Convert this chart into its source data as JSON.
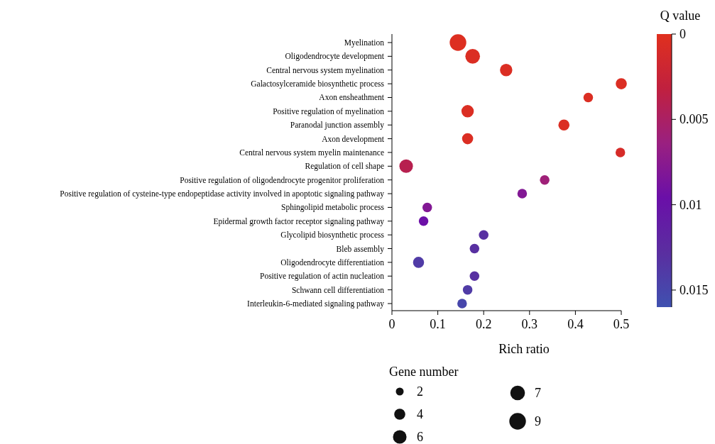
{
  "chart_data": {
    "type": "bubble",
    "orientation": "horizontal",
    "xlabel": "Rich ratio",
    "clabel": "Q value",
    "legend_title": "Gene number",
    "grid": false,
    "marker": "circle",
    "categories": [
      "Myelination",
      "Oligodendrocyte development",
      "Central nervous system myelination",
      "Galactosylceramide biosynthetic process",
      "Axon ensheathment",
      "Positive regulation of myelination",
      "Paranodal junction assembly",
      "Axon development",
      "Central nervous system myelin maintenance",
      "Regulation of cell shape",
      "Positive regulation of oligodendrocyte progenitor proliferation",
      "Positive regulation of cysteine-type endopeptidase activity involved in apoptotic signaling pathway",
      "Sphingolipid metabolic process",
      "Epidermal growth factor receptor signaling pathway",
      "Glycolipid biosynthetic process",
      "Bleb assembly",
      "Oligodendrocyte differentiation",
      "Positive regulation of actin nucleation",
      "Schwann cell differentiation",
      "Interleukin-6-mediated signaling pathway"
    ],
    "values": [
      0.144,
      0.176,
      0.249,
      0.5,
      0.428,
      0.165,
      0.375,
      0.165,
      0.498,
      0.031,
      0.333,
      0.284,
      0.077,
      0.069,
      0.2,
      0.18,
      0.058,
      0.18,
      0.165,
      0.153
    ],
    "sizes": [
      9,
      7,
      5,
      4,
      3,
      5,
      4,
      4,
      3,
      6,
      3,
      3,
      3,
      3,
      3,
      3,
      4,
      3,
      3,
      3
    ],
    "cvalues": [
      0.0003,
      0.0005,
      0.0005,
      0.0005,
      0.0005,
      0.0005,
      0.0005,
      0.0005,
      0.001,
      0.004,
      0.006,
      0.008,
      0.008,
      0.0095,
      0.013,
      0.013,
      0.014,
      0.013,
      0.014,
      0.015
    ],
    "size_legend": [
      2,
      4,
      6,
      7,
      9
    ],
    "xlim": [
      0,
      0.5
    ],
    "xticks": [
      0,
      0.1,
      0.2,
      0.3,
      0.4,
      0.5
    ],
    "clim": [
      0,
      0.016
    ],
    "cticks": [
      0,
      0.005,
      0.01,
      0.015
    ]
  }
}
